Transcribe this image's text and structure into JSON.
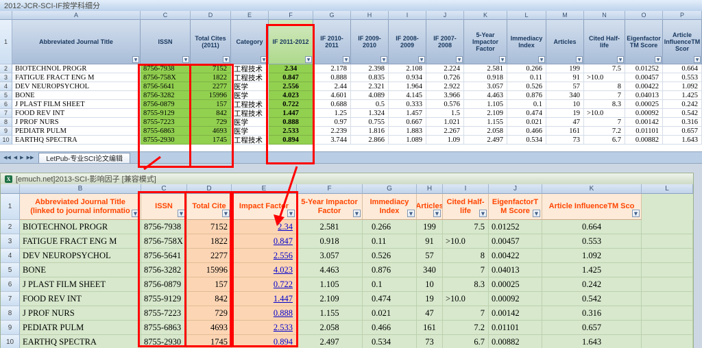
{
  "colors": {
    "green": "#92d050",
    "green_header": "#aed98c",
    "peach": "#fcd5b4",
    "header_red": "#ff4500",
    "link_blue": "#0000cc",
    "red": "#ff0000"
  },
  "top": {
    "title": "2012-JCR-SCI-IF按学科细分",
    "sheet_tab": "LetPub-专业SCI论文编辑",
    "col_letters": [
      "A",
      "C",
      "D",
      "E",
      "F",
      "G",
      "H",
      "I",
      "J",
      "K",
      "L",
      "M",
      "N",
      "O",
      "P"
    ],
    "header_row_number": "1",
    "row_numbers": [
      "2",
      "3",
      "4",
      "5",
      "6",
      "7",
      "8",
      "9",
      "10"
    ],
    "headers": [
      "Abbreviated Journal Title",
      "ISSN",
      "Total Cites (2011)",
      "Category",
      "IF 2011-2012",
      "IF 2010-2011",
      "IF 2009-2010",
      "IF 2008-2009",
      "IF 2007-2008",
      "5-Year Impactor Factor",
      "Immediacy Index",
      "Articles",
      "Cited Half-life",
      "Eigenfactor TM Score",
      "Article InfluenceTM Scor"
    ],
    "rows": [
      [
        "BIOTECHNOL PROGR",
        "8756-7938",
        "7152",
        "工程技术",
        "2.34",
        "2.178",
        "2.398",
        "2.108",
        "2.224",
        "2.581",
        "0.266",
        "199",
        "7.5",
        "0.01252",
        "0.664"
      ],
      [
        "FATIGUE FRACT ENG M",
        "8756-758X",
        "1822",
        "工程技术",
        "0.847",
        "0.888",
        "0.835",
        "0.934",
        "0.726",
        "0.918",
        "0.11",
        "91",
        ">10.0",
        "0.00457",
        "0.553"
      ],
      [
        "DEV NEUROPSYCHOL",
        "8756-5641",
        "2277",
        "医学",
        "2.556",
        "2.44",
        "2.321",
        "1.964",
        "2.922",
        "3.057",
        "0.526",
        "57",
        "8",
        "0.00422",
        "1.092"
      ],
      [
        "BONE",
        "8756-3282",
        "15996",
        "医学",
        "4.023",
        "4.601",
        "4.089",
        "4.145",
        "3.966",
        "4.463",
        "0.876",
        "340",
        "7",
        "0.04013",
        "1.425"
      ],
      [
        "J PLAST FILM SHEET",
        "8756-0879",
        "157",
        "工程技术",
        "0.722",
        "0.688",
        "0.5",
        "0.333",
        "0.576",
        "1.105",
        "0.1",
        "10",
        "8.3",
        "0.00025",
        "0.242"
      ],
      [
        "FOOD REV INT",
        "8755-9129",
        "842",
        "工程技术",
        "1.447",
        "1.25",
        "1.324",
        "1.457",
        "1.5",
        "2.109",
        "0.474",
        "19",
        ">10.0",
        "0.00092",
        "0.542"
      ],
      [
        "J PROF NURS",
        "8755-7223",
        "729",
        "医学",
        "0.888",
        "0.97",
        "0.755",
        "0.667",
        "1.021",
        "1.155",
        "0.021",
        "47",
        "7",
        "0.00142",
        "0.316"
      ],
      [
        "PEDIATR PULM",
        "8755-6863",
        "4693",
        "医学",
        "2.533",
        "2.239",
        "1.816",
        "1.883",
        "2.267",
        "2.058",
        "0.466",
        "161",
        "7.2",
        "0.01101",
        "0.657"
      ],
      [
        "EARTHQ SPECTRA",
        "8755-2930",
        "1745",
        "工程技术",
        "0.894",
        "3.744",
        "2.866",
        "1.089",
        "1.09",
        "2.497",
        "0.534",
        "73",
        "6.7",
        "0.00882",
        "1.643"
      ]
    ]
  },
  "bottom": {
    "title": "[emuch.net]2013-SCI-影响因子  [兼容模式]",
    "col_letters": [
      "B",
      "C",
      "D",
      "E",
      "F",
      "G",
      "H",
      "I",
      "J",
      "K",
      "L"
    ],
    "header_row_number": "1",
    "row_numbers": [
      "2",
      "3",
      "4",
      "5",
      "6",
      "7",
      "8",
      "9",
      "10"
    ],
    "headers": [
      "Abbreviated Journal Title (linked to journal informatio",
      "ISSN",
      "Total Cite",
      "Impact Factor",
      "5-Year Impactor Factor",
      "Immediacy Index",
      "Articles",
      "Cited Half-life",
      "EigenfactorT M Score",
      "Article InfluenceTM Sco"
    ],
    "rows": [
      [
        "BIOTECHNOL PROGR",
        "8756-7938",
        "7152",
        "2.34",
        "2.581",
        "0.266",
        "199",
        "7.5",
        "0.01252",
        "0.664"
      ],
      [
        "FATIGUE FRACT ENG M",
        "8756-758X",
        "1822",
        "0.847",
        "0.918",
        "0.11",
        "91",
        ">10.0",
        "0.00457",
        "0.553"
      ],
      [
        "DEV NEUROPSYCHOL",
        "8756-5641",
        "2277",
        "2.556",
        "3.057",
        "0.526",
        "57",
        "8",
        "0.00422",
        "1.092"
      ],
      [
        "BONE",
        "8756-3282",
        "15996",
        "4.023",
        "4.463",
        "0.876",
        "340",
        "7",
        "0.04013",
        "1.425"
      ],
      [
        "J PLAST FILM SHEET",
        "8756-0879",
        "157",
        "0.722",
        "1.105",
        "0.1",
        "10",
        "8.3",
        "0.00025",
        "0.242"
      ],
      [
        "FOOD REV INT",
        "8755-9129",
        "842",
        "1.447",
        "2.109",
        "0.474",
        "19",
        ">10.0",
        "0.00092",
        "0.542"
      ],
      [
        "J PROF NURS",
        "8755-7223",
        "729",
        "0.888",
        "1.155",
        "0.021",
        "47",
        "7",
        "0.00142",
        "0.316"
      ],
      [
        "PEDIATR PULM",
        "8755-6863",
        "4693",
        "2.533",
        "2.058",
        "0.466",
        "161",
        "7.2",
        "0.01101",
        "0.657"
      ],
      [
        "EARTHQ SPECTRA",
        "8755-2930",
        "1745",
        "0.894",
        "2.497",
        "0.534",
        "73",
        "6.7",
        "0.00882",
        "1.643"
      ]
    ]
  }
}
